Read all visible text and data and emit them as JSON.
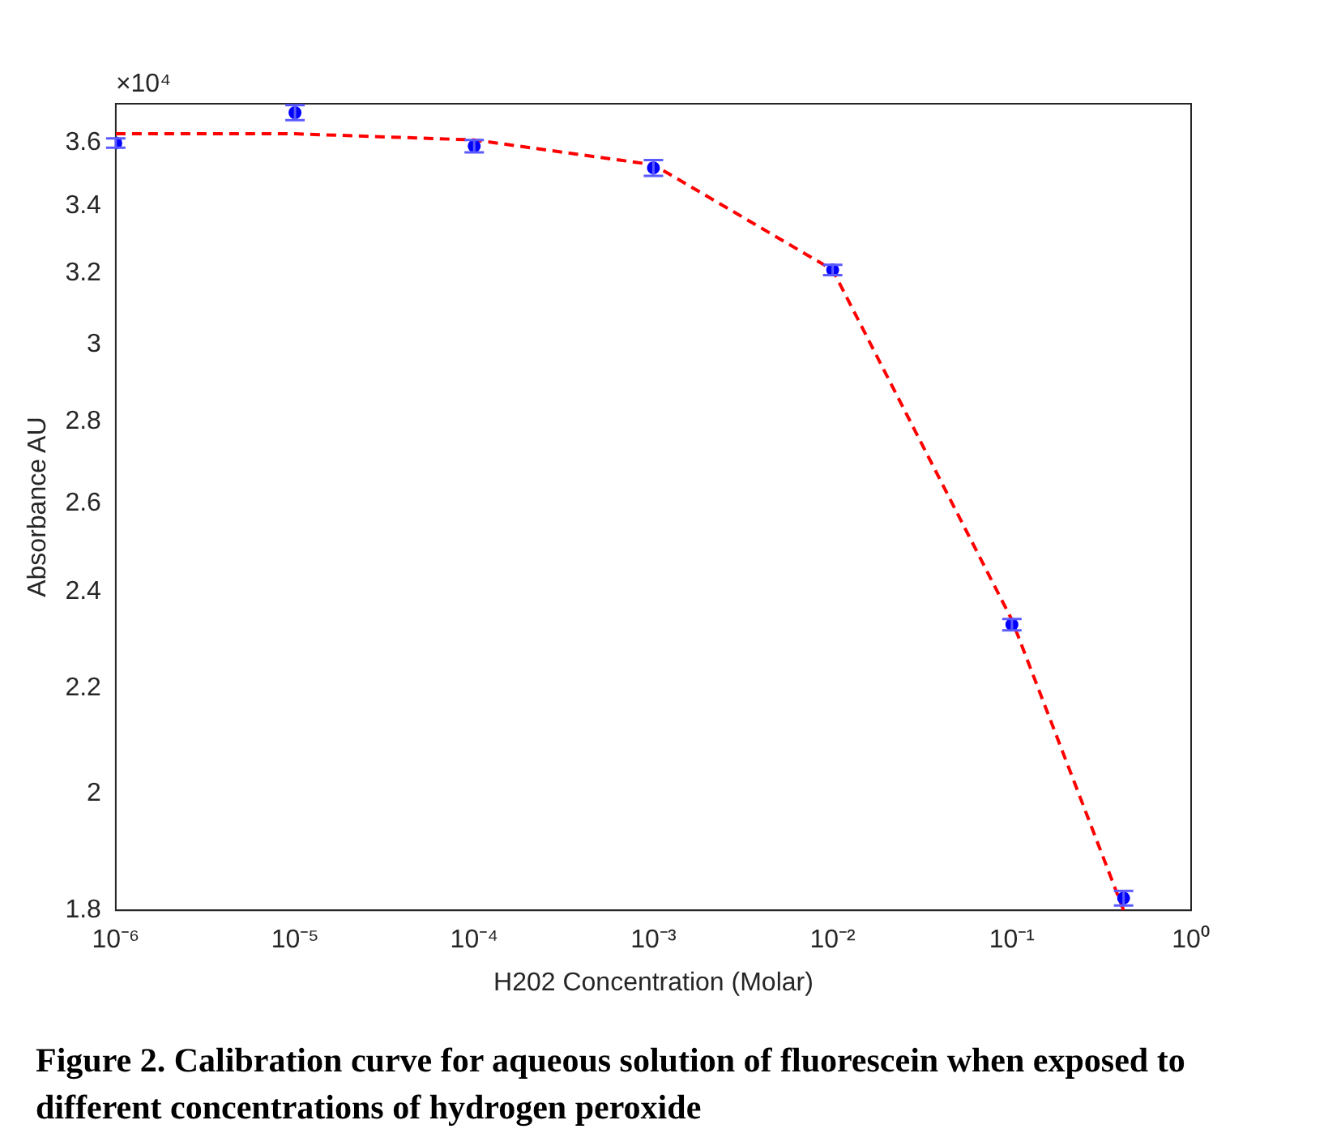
{
  "chart_data": {
    "type": "scatter",
    "xlabel": "H202 Concentration (Molar)",
    "ylabel": "Absorbance AU",
    "log": "xy",
    "grid": false,
    "legend": false,
    "xlim": [
      1e-06,
      1
    ],
    "xticks": [
      {
        "value": 1e-06,
        "label": "10⁻⁶"
      },
      {
        "value": 1e-05,
        "label": "10⁻⁵"
      },
      {
        "value": 0.0001,
        "label": "10⁻⁴"
      },
      {
        "value": 0.001,
        "label": "10⁻³"
      },
      {
        "value": 0.01,
        "label": "10⁻²"
      },
      {
        "value": 0.1,
        "label": "10⁻¹"
      },
      {
        "value": 1,
        "label": "10⁰"
      }
    ],
    "ylim": [
      1.8,
      3.73
    ],
    "yticks": [
      1.8,
      2,
      2.2,
      2.4,
      2.6,
      2.8,
      3,
      3.2,
      3.4,
      3.6
    ],
    "series": [
      {
        "type": "scatter",
        "color": "#0000ff",
        "marker": "circle",
        "x": [
          1e-06,
          1e-05,
          0.0001,
          0.001,
          0.01,
          0.1,
          0.42
        ],
        "values": [
          3.6,
          3.7,
          3.59,
          3.52,
          3.21,
          2.33,
          1.82
        ],
        "errors": [
          0.015,
          0.025,
          0.02,
          0.025,
          0.015,
          0.012,
          0.012
        ]
      },
      {
        "type": "line",
        "color": "#ff0000",
        "marker": "none",
        "line_style": "dashed",
        "x": [
          1e-06,
          1e-05,
          0.0001,
          0.001,
          0.01,
          0.1,
          0.42
        ],
        "values": [
          3.63,
          3.63,
          3.61,
          3.53,
          3.21,
          2.34,
          1.8
        ]
      }
    ],
    "annotations": [
      "×10⁴",
      "Figure 2. Calibration curve for aqueous solution of fluorescein when exposed to different concentrations of hydrogen peroxide"
    ]
  }
}
